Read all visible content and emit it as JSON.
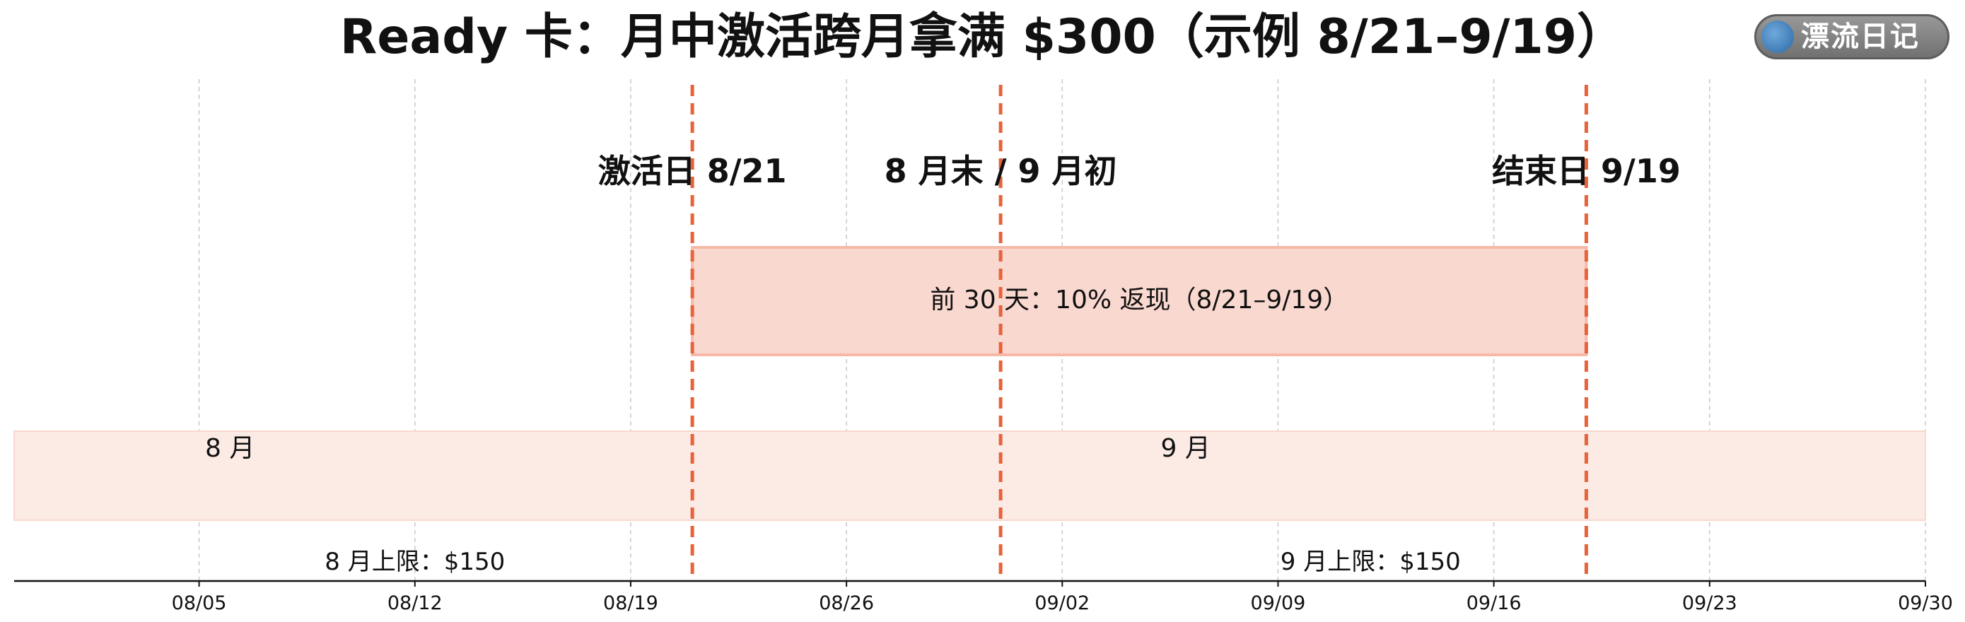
{
  "watermark": {
    "text": "漂流日记"
  },
  "chart_data": {
    "type": "timeline",
    "title": "Ready 卡：月中激活跨月拿满 $300（示例 8/21–9/19）",
    "x_range": [
      "2024-07-30",
      "2024-09-30"
    ],
    "x_ticks": [
      {
        "date": "2024-08-05",
        "label": "08/05"
      },
      {
        "date": "2024-08-12",
        "label": "08/12"
      },
      {
        "date": "2024-08-19",
        "label": "08/19"
      },
      {
        "date": "2024-08-26",
        "label": "08/26"
      },
      {
        "date": "2024-09-02",
        "label": "09/02"
      },
      {
        "date": "2024-09-09",
        "label": "09/09"
      },
      {
        "date": "2024-09-16",
        "label": "09/16"
      },
      {
        "date": "2024-09-23",
        "label": "09/23"
      },
      {
        "date": "2024-09-30",
        "label": "09/30"
      }
    ],
    "grid": true,
    "markers": [
      {
        "date": "2024-08-21",
        "label": "激活日 8/21",
        "color": "#e8623a"
      },
      {
        "date": "2024-08-31",
        "label": "8 月末 / 9 月初",
        "color": "#e8623a"
      },
      {
        "date": "2024-09-19",
        "label": "结束日 9/19",
        "color": "#e8623a"
      }
    ],
    "bands": [
      {
        "start": "2024-08-21",
        "end": "2024-09-19",
        "label": "前 30 天：10% 返现（8/21–9/19）",
        "fill": "#f9d8cf",
        "stroke": "#f6b9a8"
      },
      {
        "start": "2024-07-30",
        "end": "2024-09-30",
        "label": "",
        "fill": "#fcebe5",
        "stroke": "#f8d8cc"
      }
    ],
    "month_labels": [
      {
        "date": "2024-08-06",
        "label": "8 月"
      },
      {
        "date": "2024-09-06",
        "label": "9 月"
      }
    ],
    "cap_labels": [
      {
        "date": "2024-08-12",
        "label": "8 月上限：$150"
      },
      {
        "date": "2024-09-12",
        "label": "9 月上限：$150"
      }
    ]
  }
}
